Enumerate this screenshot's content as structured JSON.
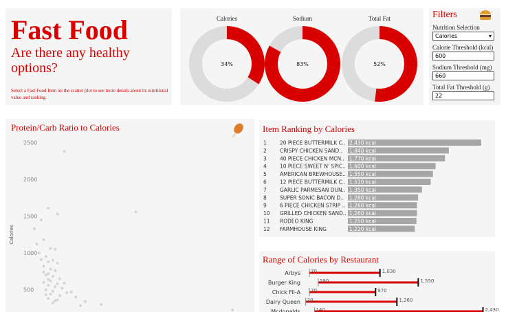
{
  "header": {
    "title": "Fast Food",
    "subtitle": "Are there any healthy options?",
    "note": "Select a Fast Food Item on the scatter plot to see more details about its nutritional value and ranking."
  },
  "filters": {
    "title": "Filters",
    "fields": [
      {
        "label": "Nutrition Selection",
        "value": "Calories"
      },
      {
        "label": "Calorie Threshold (kcal)",
        "value": 600
      },
      {
        "label": "Sodium Threshold (mg)",
        "value": 660
      },
      {
        "label": "Total Fat Threshold (g)",
        "value": 22
      }
    ]
  },
  "chart_data": [
    {
      "type": "pie",
      "categories": [
        "Calories",
        "Sodium",
        "Total Fat"
      ],
      "values": [
        34,
        83,
        52
      ],
      "value_labels": [
        "34%",
        "83%",
        "52%"
      ],
      "color": "#d90000",
      "rest_color": "#dcdcdc"
    },
    {
      "type": "scatter",
      "title": "Protein/Carb Ratio to Calories",
      "y_label": "Calories",
      "color": "#cccccc",
      "xlim": [
        0,
        10
      ],
      "ylim": [
        0,
        2600
      ],
      "yticks": [
        500,
        1000,
        1500,
        2000,
        2500
      ],
      "x": [
        1.9,
        1.2,
        1.6,
        5.0,
        0.9,
        0.6,
        1.0,
        1.3,
        1.5,
        0.8,
        1.1,
        1.4,
        1.2,
        1.6,
        1.0,
        1.3,
        1.5,
        1.2,
        1.1,
        1.4,
        1.7,
        1.3,
        1.0,
        1.6,
        1.2,
        1.5,
        1.8,
        1.1,
        1.4,
        2.0,
        1.3,
        1.7,
        2.4,
        1.2,
        1.6,
        2.8,
        1.4,
        3.5,
        9.2,
        0.9,
        1.0,
        1.2,
        1.9,
        2.2,
        1.1,
        1.5,
        0.7,
        2.6
      ],
      "values": [
        2380,
        1610,
        1530,
        1560,
        1450,
        1330,
        1180,
        1060,
        1050,
        1000,
        950,
        900,
        880,
        860,
        820,
        780,
        760,
        720,
        700,
        680,
        650,
        620,
        600,
        580,
        560,
        540,
        520,
        500,
        480,
        460,
        440,
        420,
        400,
        380,
        360,
        340,
        320,
        300,
        225,
        910,
        740,
        640,
        590,
        470,
        430,
        350,
        1120,
        280
      ]
    },
    {
      "type": "bar",
      "title": "Item Ranking by Calories",
      "color": "#a6a6a6",
      "xlim": [
        0,
        2500
      ],
      "ranks": [
        1,
        2,
        3,
        4,
        5,
        6,
        7,
        8,
        9,
        10,
        11,
        12
      ],
      "categories": [
        "20 PIECE BUTTERMILK C..",
        "CRISPY CHICKEN SAND..",
        "40 PIECE CHICKEN MCN..",
        "10 PIECE SWEET N' SPIC..",
        "AMERICAN BREWHOUSE..",
        "12 PIECE BUTTERMILK C..",
        "GARLIC PARMESAN DUN..",
        "SUPER SONIC BACON D..",
        "6 PIECE CHICKEN STRIP ..",
        "GRILLED CHICKEN SAND..",
        "RODEO KING",
        "FARMHOUSE KING"
      ],
      "values": [
        2430,
        1840,
        1770,
        1600,
        1550,
        1510,
        1350,
        1280,
        1260,
        1260,
        1250,
        1220
      ],
      "value_labels": [
        "2,430 kcal",
        "1,840 kcal",
        "1,770 kcal",
        "1,600 kcal",
        "1,550 kcal",
        "1,510 kcal",
        "1,350 kcal",
        "1,280 kcal",
        "1,260 kcal",
        "1,260 kcal",
        "1,250 kcal",
        "1,220 kcal"
      ]
    },
    {
      "type": "range",
      "title": "Range of Calories by Restaurant",
      "color": "#d90000",
      "xlim": [
        0,
        2500
      ],
      "categories": [
        "Arbys",
        "Burger King",
        "Chick Fil-A",
        "Dairy Queen",
        "Mcdonalds"
      ],
      "min_values": [
        70,
        190,
        70,
        20,
        140
      ],
      "max_values": [
        1030,
        1550,
        970,
        1260,
        2430
      ],
      "max_labels": [
        "1,030",
        "1,550",
        "970",
        "1,260",
        "2,430"
      ]
    }
  ]
}
